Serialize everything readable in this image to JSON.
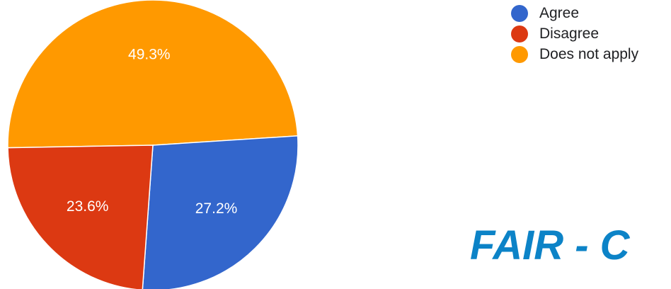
{
  "chart_data": {
    "type": "pie",
    "title": "",
    "categories": [
      "Agree",
      "Disagree",
      "Does not apply"
    ],
    "values": [
      27.2,
      23.6,
      49.3
    ],
    "labels": [
      "27.2%",
      "23.6%",
      "49.3%"
    ],
    "colors": [
      "#3366cc",
      "#dc3912",
      "#ff9900"
    ],
    "legend": {
      "placement": "top-right",
      "entries": [
        "Agree",
        "Disagree",
        "Does not apply"
      ]
    }
  },
  "banner": {
    "text": "FAIR - C",
    "color": "#0c83c7"
  }
}
